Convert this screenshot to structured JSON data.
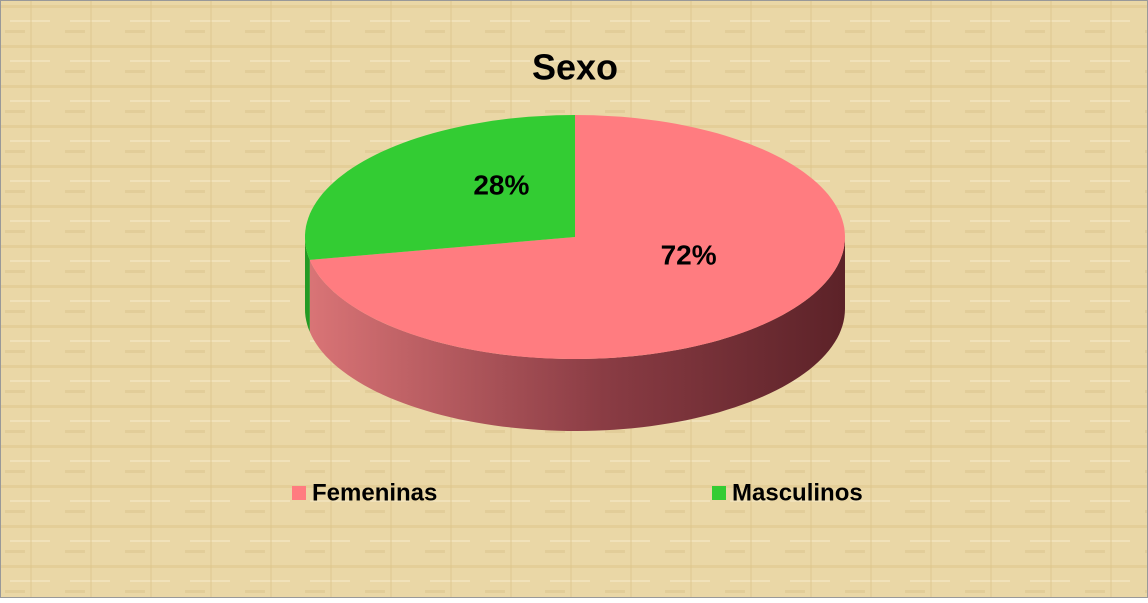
{
  "chart_data": {
    "type": "pie3d",
    "title": "Sexo",
    "categories": [
      "Femeninas",
      "Masculinos"
    ],
    "values": [
      72,
      28
    ],
    "value_labels": [
      "72%",
      "28%"
    ],
    "colors": [
      "#ff7c80",
      "#33cc33"
    ],
    "legend": "bottom"
  }
}
